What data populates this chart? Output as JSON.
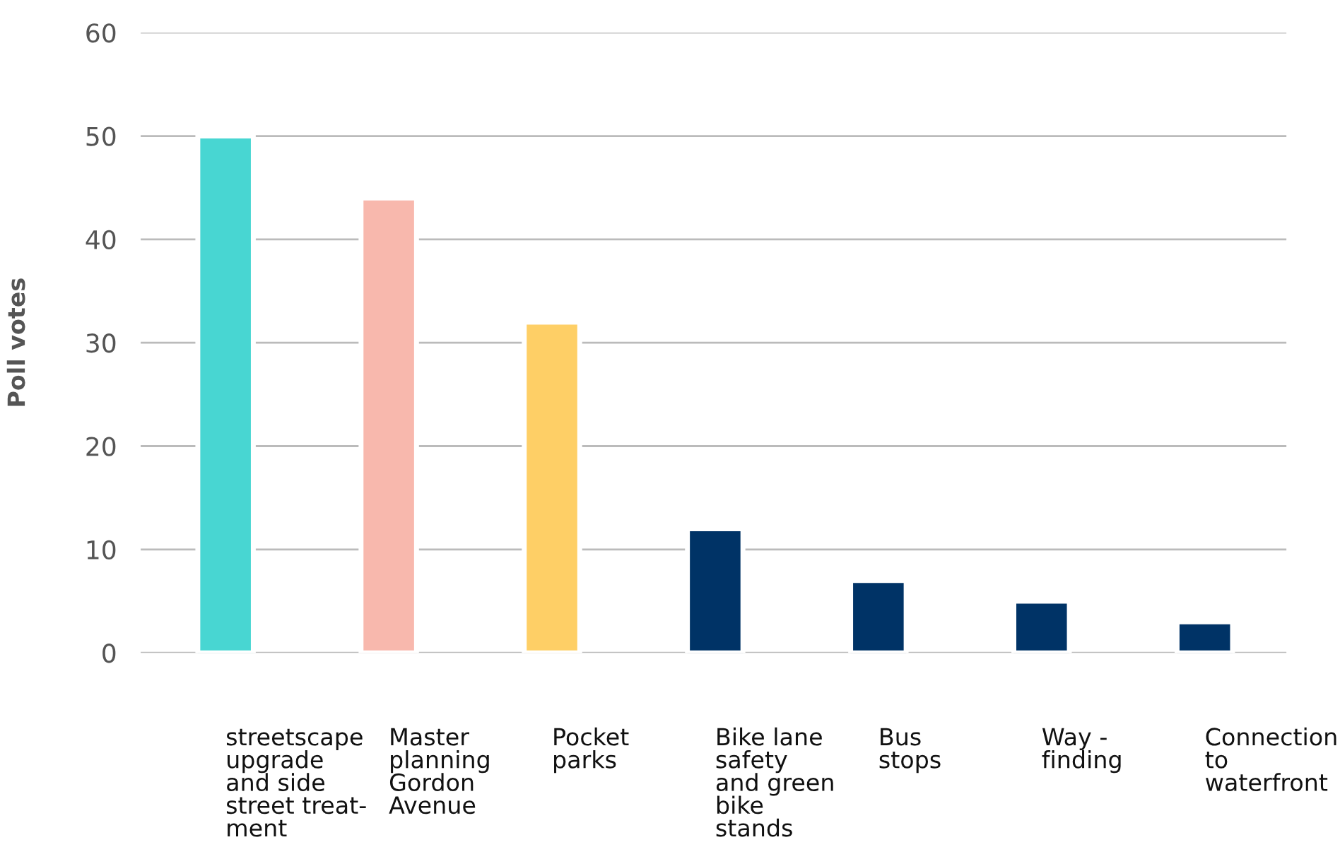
{
  "chart_data": {
    "type": "bar",
    "ylabel": "Poll votes",
    "categories": [
      "streetscape\nupgrade\nand side\nstreet treat-\nment",
      "Master\nplanning\nGordon\nAvenue",
      "Pocket\nparks",
      "Bike lane\nsafety\nand green\nbike\nstands",
      "Bus\nstops",
      "Way -\nfinding",
      "Connection\nto\nwaterfront"
    ],
    "values": [
      50,
      44,
      32,
      12,
      7,
      5,
      3
    ],
    "colors": [
      "#48d6d2",
      "#f8b8ad",
      "#fecf66",
      "#003366",
      "#003366",
      "#003366",
      "#003366"
    ],
    "ylim": [
      0,
      60
    ],
    "yticks": [
      0,
      10,
      20,
      30,
      40,
      50,
      60
    ],
    "grid": "y",
    "legend": false
  }
}
